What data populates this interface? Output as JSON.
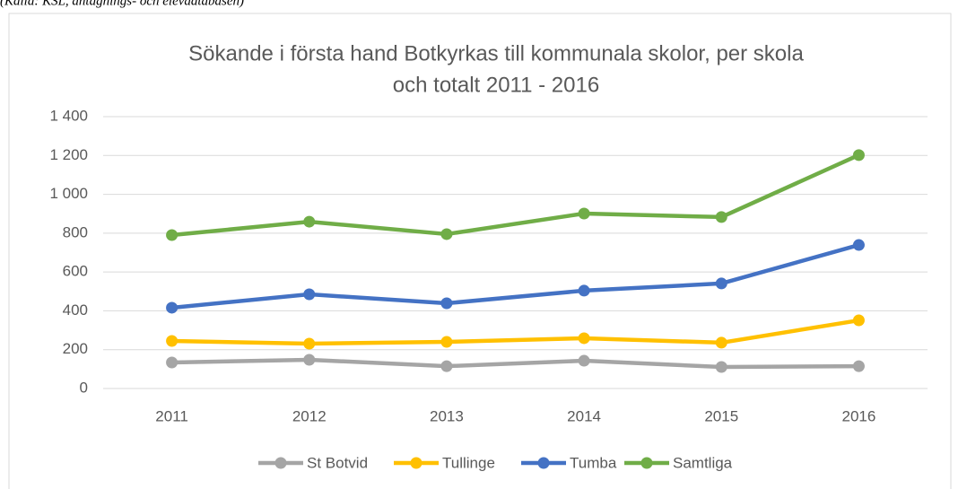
{
  "chart_data": {
    "type": "line",
    "source": "(Källa: KSL, antagnings- och elevdatabasen)",
    "title": [
      "Sökande i första hand Botkyrkas till kommunala skolor, per skola",
      "och totalt 2011 - 2016"
    ],
    "categories": [
      "2011",
      "2012",
      "2013",
      "2014",
      "2015",
      "2016"
    ],
    "series": [
      {
        "name": "St Botvid",
        "color": "#a5a5a5",
        "values": [
          134,
          148,
          115,
          143,
          111,
          115
        ]
      },
      {
        "name": "Tullinge",
        "color": "#ffc000",
        "values": [
          245,
          231,
          240,
          259,
          236,
          351
        ]
      },
      {
        "name": "Tumba",
        "color": "#4472c4",
        "values": [
          416,
          485,
          439,
          504,
          541,
          739
        ]
      },
      {
        "name": "Samtliga",
        "color": "#70ad47",
        "values": [
          790,
          859,
          795,
          901,
          883,
          1202
        ]
      }
    ],
    "ylim": [
      0,
      1400
    ],
    "yticks": [
      0,
      200,
      400,
      600,
      800,
      {
        "value": 1000,
        "label": "1 000"
      },
      {
        "value": 1200,
        "label": "1 200"
      },
      {
        "value": 1400,
        "label": "1 400"
      }
    ],
    "grid": true,
    "legend": "bottom"
  }
}
